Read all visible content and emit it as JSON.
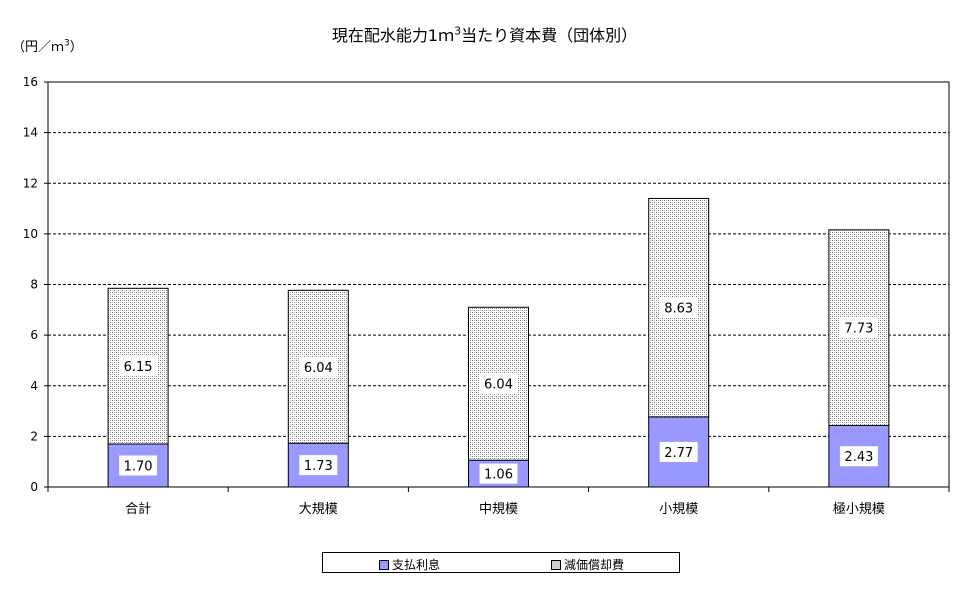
{
  "chart_data": {
    "type": "bar",
    "stacked": true,
    "title": "現在配水能力1ｍ",
    "title_sup": "3",
    "title_suffix": "当たり資本費（団体別）",
    "ylabel_prefix": "（円／ｍ",
    "ylabel_sup": "3",
    "ylabel_suffix": "）",
    "ylim": [
      0,
      16
    ],
    "yticks": [
      "0",
      "2",
      "4",
      "6",
      "8",
      "10",
      "12",
      "14",
      "16"
    ],
    "grid": true,
    "legend_position": "bottom",
    "categories": [
      "合計",
      "大規模",
      "中規模",
      "小規模",
      "極小規模"
    ],
    "series": [
      {
        "name": "支払利息",
        "values": [
          1.7,
          1.73,
          1.06,
          2.77,
          2.43
        ],
        "labels": [
          "1.70",
          "1.73",
          "1.06",
          "2.77",
          "2.43"
        ],
        "color": "#9999ff"
      },
      {
        "name": "減価償却費",
        "values": [
          6.15,
          6.04,
          6.04,
          8.63,
          7.73
        ],
        "labels": [
          "6.15",
          "6.04",
          "6.04",
          "8.63",
          "7.73"
        ],
        "color": "#c8c8c8"
      }
    ]
  }
}
